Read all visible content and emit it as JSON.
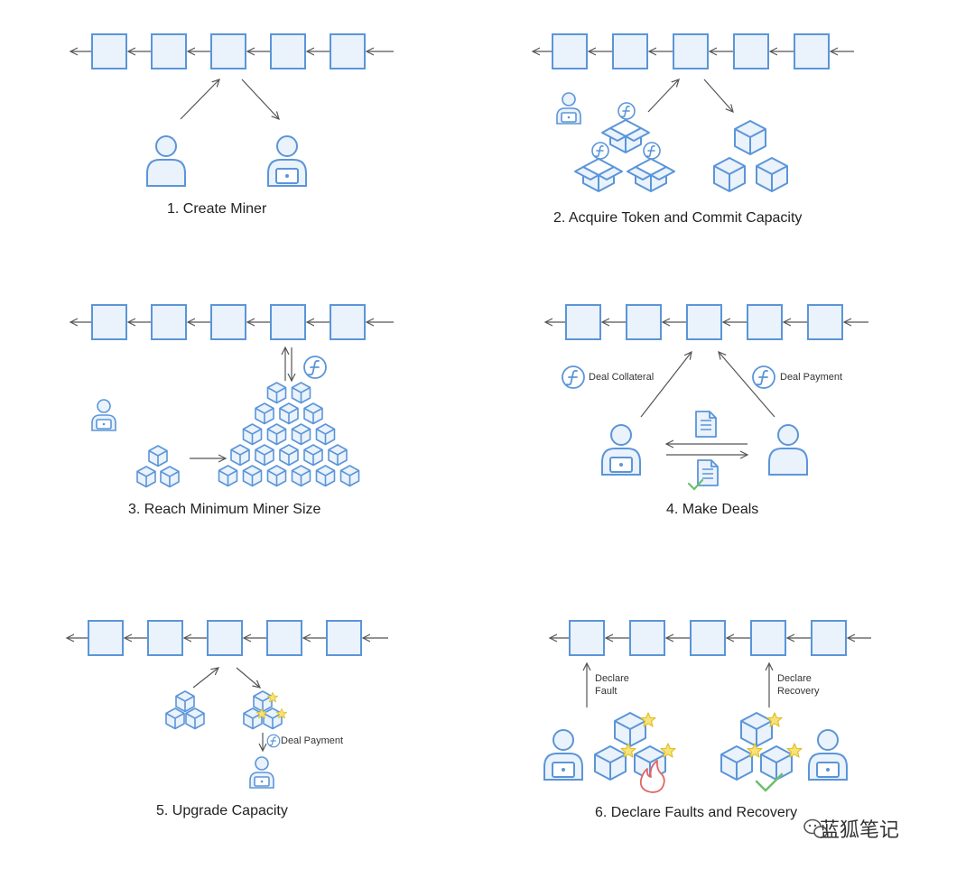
{
  "steps": [
    {
      "title": "1. Create Miner"
    },
    {
      "title": "2. Acquire Token and Commit Capacity"
    },
    {
      "title": "3. Reach Minimum Miner Size"
    },
    {
      "title": "4. Make Deals",
      "left_note": "Deal Collateral",
      "right_note": "Deal Payment"
    },
    {
      "title": "5. Upgrade Capacity",
      "note": "Deal Payment"
    },
    {
      "title": "6. Declare Faults and Recovery",
      "fault_note": [
        "Declare",
        "Fault"
      ],
      "recovery_note": [
        "Declare",
        "Recovery"
      ]
    }
  ],
  "watermark": "蓝狐笔记",
  "colors": {
    "stroke": "#5b95d8",
    "fill": "#eaf2fc",
    "arrow": "#555555",
    "star": "#f2d43c",
    "fire": "#e06666",
    "check": "#6cc070"
  },
  "icons": [
    "blockchain-block-icon",
    "person-icon",
    "miner-laptop-icon",
    "filecoin-token-icon",
    "storage-box-icon",
    "document-icon",
    "star-icon",
    "fire-icon",
    "check-icon",
    "wechat-icon"
  ]
}
